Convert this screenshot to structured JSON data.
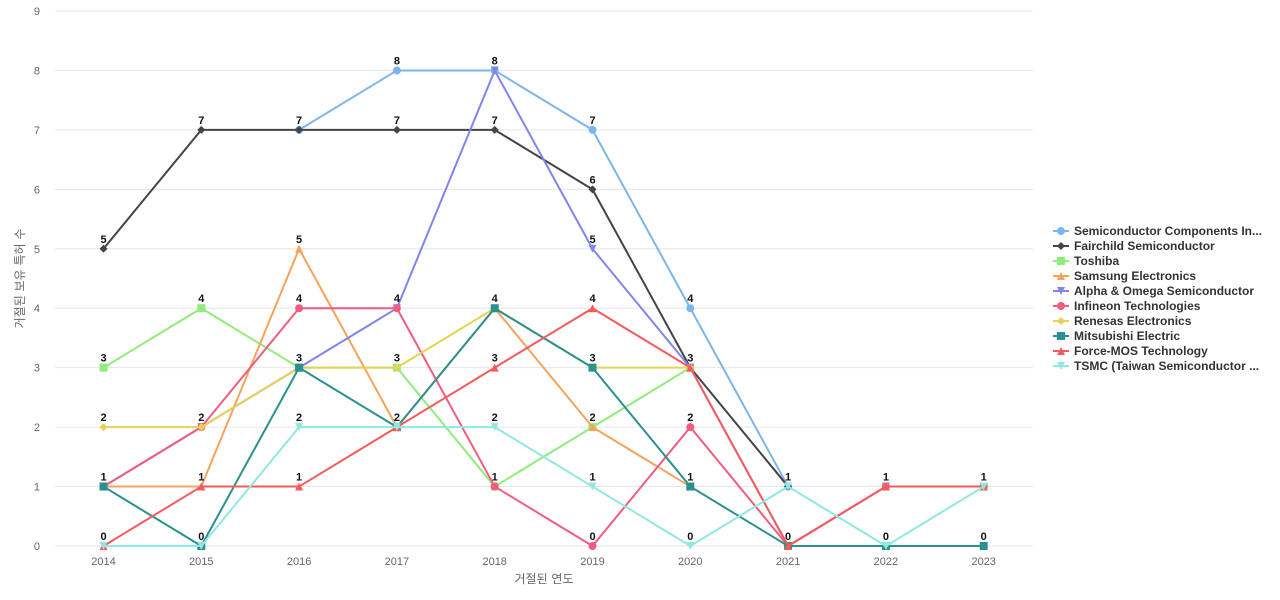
{
  "chart_data": {
    "type": "line",
    "title": "",
    "xlabel": "거절된 연도",
    "ylabel": "거절된 보유 특허 수",
    "x": [
      "2014",
      "2015",
      "2016",
      "2017",
      "2018",
      "2019",
      "2020",
      "2021",
      "2022",
      "2023"
    ],
    "y_ticks": [
      "0",
      "1",
      "2",
      "3",
      "4",
      "5",
      "6",
      "7",
      "8",
      "9"
    ],
    "ylim": [
      0,
      9
    ],
    "grid": true,
    "legend_position": "right",
    "series": [
      {
        "name": "Semiconductor Components In...",
        "color": "#7cb5ec",
        "marker": "circle",
        "values": [
          null,
          null,
          7,
          8,
          8,
          7,
          4,
          1,
          null,
          null
        ]
      },
      {
        "name": "Fairchild Semiconductor",
        "color": "#434348",
        "marker": "diamond",
        "values": [
          5,
          7,
          7,
          7,
          7,
          6,
          3,
          1,
          null,
          null
        ]
      },
      {
        "name": "Toshiba",
        "color": "#90ed7d",
        "marker": "square",
        "values": [
          3,
          4,
          3,
          3,
          1,
          2,
          3,
          null,
          null,
          1
        ]
      },
      {
        "name": "Samsung Electronics",
        "color": "#f7a35c",
        "marker": "triangle",
        "values": [
          1,
          1,
          5,
          2,
          4,
          2,
          1,
          null,
          null,
          1
        ]
      },
      {
        "name": "Alpha & Omega Semiconductor",
        "color": "#8085e9",
        "marker": "triangle-down",
        "values": [
          1,
          2,
          3,
          4,
          8,
          5,
          3,
          0,
          1,
          1
        ]
      },
      {
        "name": "Infineon Technologies",
        "color": "#f15c80",
        "marker": "circle",
        "values": [
          1,
          2,
          4,
          4,
          1,
          0,
          2,
          0,
          1,
          1
        ]
      },
      {
        "name": "Renesas Electronics",
        "color": "#e4d354",
        "marker": "diamond",
        "values": [
          2,
          2,
          3,
          3,
          4,
          3,
          3,
          null,
          null,
          null
        ]
      },
      {
        "name": "Mitsubishi Electric",
        "color": "#2b908f",
        "marker": "square",
        "values": [
          1,
          0,
          3,
          2,
          4,
          3,
          1,
          0,
          0,
          0
        ]
      },
      {
        "name": "Force-MOS Technology",
        "color": "#f45b5b",
        "marker": "triangle",
        "values": [
          0,
          1,
          1,
          2,
          3,
          4,
          3,
          0,
          1,
          1
        ]
      },
      {
        "name": "TSMC (Taiwan Semiconductor ...",
        "color": "#91e8e1",
        "marker": "triangle-down",
        "values": [
          0,
          0,
          2,
          2,
          2,
          1,
          0,
          1,
          0,
          1
        ]
      }
    ],
    "data_labels": [
      {
        "x": "2014",
        "y": 5,
        "text": "5"
      },
      {
        "x": "2014",
        "y": 3,
        "text": "3"
      },
      {
        "x": "2014",
        "y": 2,
        "text": "2"
      },
      {
        "x": "2014",
        "y": 1,
        "text": "1"
      },
      {
        "x": "2014",
        "y": 0,
        "text": "0"
      },
      {
        "x": "2015",
        "y": 7,
        "text": "7"
      },
      {
        "x": "2015",
        "y": 4,
        "text": "4"
      },
      {
        "x": "2015",
        "y": 2,
        "text": "2"
      },
      {
        "x": "2015",
        "y": 1,
        "text": "1"
      },
      {
        "x": "2015",
        "y": 0,
        "text": "0"
      },
      {
        "x": "2016",
        "y": 7,
        "text": "7"
      },
      {
        "x": "2016",
        "y": 5,
        "text": "5"
      },
      {
        "x": "2016",
        "y": 4,
        "text": "4"
      },
      {
        "x": "2016",
        "y": 3,
        "text": "3"
      },
      {
        "x": "2016",
        "y": 2,
        "text": "2"
      },
      {
        "x": "2016",
        "y": 1,
        "text": "1"
      },
      {
        "x": "2017",
        "y": 8,
        "text": "8"
      },
      {
        "x": "2017",
        "y": 7,
        "text": "7"
      },
      {
        "x": "2017",
        "y": 4,
        "text": "4"
      },
      {
        "x": "2017",
        "y": 3,
        "text": "3"
      },
      {
        "x": "2017",
        "y": 2,
        "text": "2"
      },
      {
        "x": "2018",
        "y": 8,
        "text": "8"
      },
      {
        "x": "2018",
        "y": 7,
        "text": "7"
      },
      {
        "x": "2018",
        "y": 4,
        "text": "4"
      },
      {
        "x": "2018",
        "y": 3,
        "text": "3"
      },
      {
        "x": "2018",
        "y": 2,
        "text": "2"
      },
      {
        "x": "2018",
        "y": 1,
        "text": "1"
      },
      {
        "x": "2019",
        "y": 7,
        "text": "7"
      },
      {
        "x": "2019",
        "y": 6,
        "text": "6"
      },
      {
        "x": "2019",
        "y": 5,
        "text": "5"
      },
      {
        "x": "2019",
        "y": 4,
        "text": "4"
      },
      {
        "x": "2019",
        "y": 3,
        "text": "3"
      },
      {
        "x": "2019",
        "y": 2,
        "text": "2"
      },
      {
        "x": "2019",
        "y": 1,
        "text": "1"
      },
      {
        "x": "2019",
        "y": 0,
        "text": "0"
      },
      {
        "x": "2020",
        "y": 4,
        "text": "4"
      },
      {
        "x": "2020",
        "y": 3,
        "text": "3"
      },
      {
        "x": "2020",
        "y": 2,
        "text": "2"
      },
      {
        "x": "2020",
        "y": 1,
        "text": "1"
      },
      {
        "x": "2020",
        "y": 0,
        "text": "0"
      },
      {
        "x": "2021",
        "y": 1,
        "text": "1"
      },
      {
        "x": "2021",
        "y": 0,
        "text": "0"
      },
      {
        "x": "2022",
        "y": 1,
        "text": "1"
      },
      {
        "x": "2022",
        "y": 0,
        "text": "0"
      },
      {
        "x": "2023",
        "y": 1,
        "text": "1"
      },
      {
        "x": "2023",
        "y": 0,
        "text": "0"
      }
    ]
  }
}
